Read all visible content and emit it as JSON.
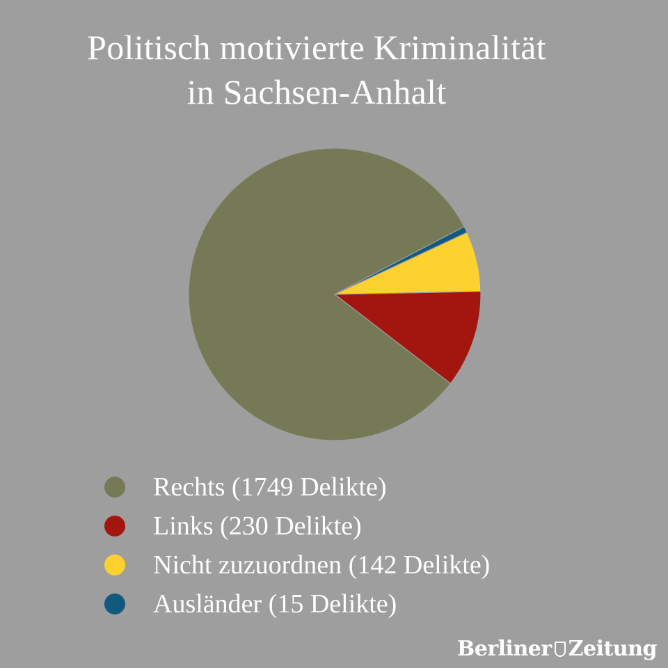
{
  "title": {
    "line1": "Politisch motivierte Kriminalität",
    "line2": "in Sachsen-Anhalt"
  },
  "chart_data": {
    "type": "pie",
    "title": "Politisch motivierte Kriminalität in Sachsen-Anhalt",
    "slices": [
      {
        "label": "Rechts (1749 Delikte)",
        "value": 1749,
        "color": "#757955"
      },
      {
        "label": "Links (230 Delikte)",
        "value": 230,
        "color": "#a3160f"
      },
      {
        "label": "Nicht zuzuordnen (142 Delikte)",
        "value": 142,
        "color": "#fdd22f"
      },
      {
        "label": "Ausländer (15 Delikte)",
        "value": 15,
        "color": "#12597e"
      }
    ],
    "legend_position": "bottom"
  },
  "logo": {
    "part1": "Berliner",
    "part2": "Zeitung"
  }
}
